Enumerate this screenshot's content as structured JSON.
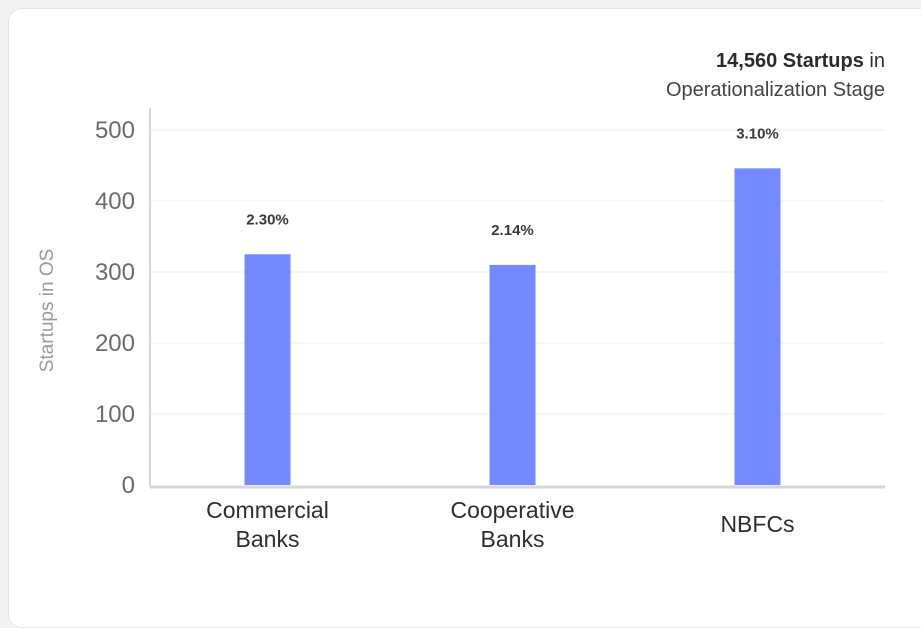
{
  "headline": {
    "count": "14,560 Startups",
    "suffix": " in",
    "stage": "Operationalization Stage"
  },
  "chart_data": {
    "type": "bar",
    "categories": [
      [
        "Commercial",
        "Banks"
      ],
      [
        "Cooperative",
        "Banks"
      ],
      [
        "NBFCs"
      ]
    ],
    "values": [
      325,
      310,
      446
    ],
    "data_labels": [
      "2.30%",
      "2.14%",
      "3.10%"
    ],
    "ylabel": "Startups in OS",
    "xlabel": "",
    "ylim": [
      0,
      500
    ],
    "yticks": [
      0,
      100,
      200,
      300,
      400,
      500
    ],
    "grid": true,
    "colors": {
      "bar": "#7489ff",
      "grid": "#ececec",
      "axis": "#d6d6d6"
    }
  }
}
